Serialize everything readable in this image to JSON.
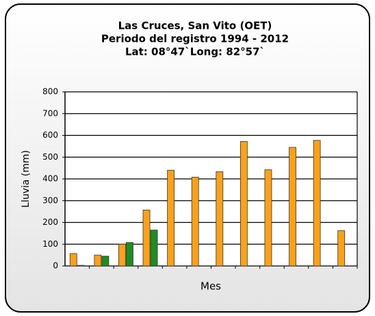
{
  "chart_data": {
    "type": "bar",
    "title": "Las Cruces, San Vito (OET)",
    "subtitle": [
      "Periodo del registro 1994 - 2012",
      "Lat: 08°47`Long: 82°57`"
    ],
    "xlabel": "Mes",
    "ylabel": "Lluvia (mm)",
    "categories": [
      null,
      null,
      null,
      null,
      null,
      null,
      null,
      null,
      null,
      null,
      null,
      null
    ],
    "series": [
      {
        "color": "#f9a11b",
        "values": [
          57,
          50,
          100,
          257,
          440,
          408,
          433,
          572,
          442,
          545,
          577,
          162
        ]
      },
      {
        "color": "#1f8c1f",
        "values": [
          3,
          45,
          108,
          165,
          null,
          null,
          null,
          null,
          null,
          null,
          null,
          null
        ]
      }
    ],
    "ylim": [
      0,
      800
    ],
    "yticks": [
      0,
      100,
      200,
      300,
      400,
      500,
      600,
      700,
      800
    ],
    "grid": true
  }
}
